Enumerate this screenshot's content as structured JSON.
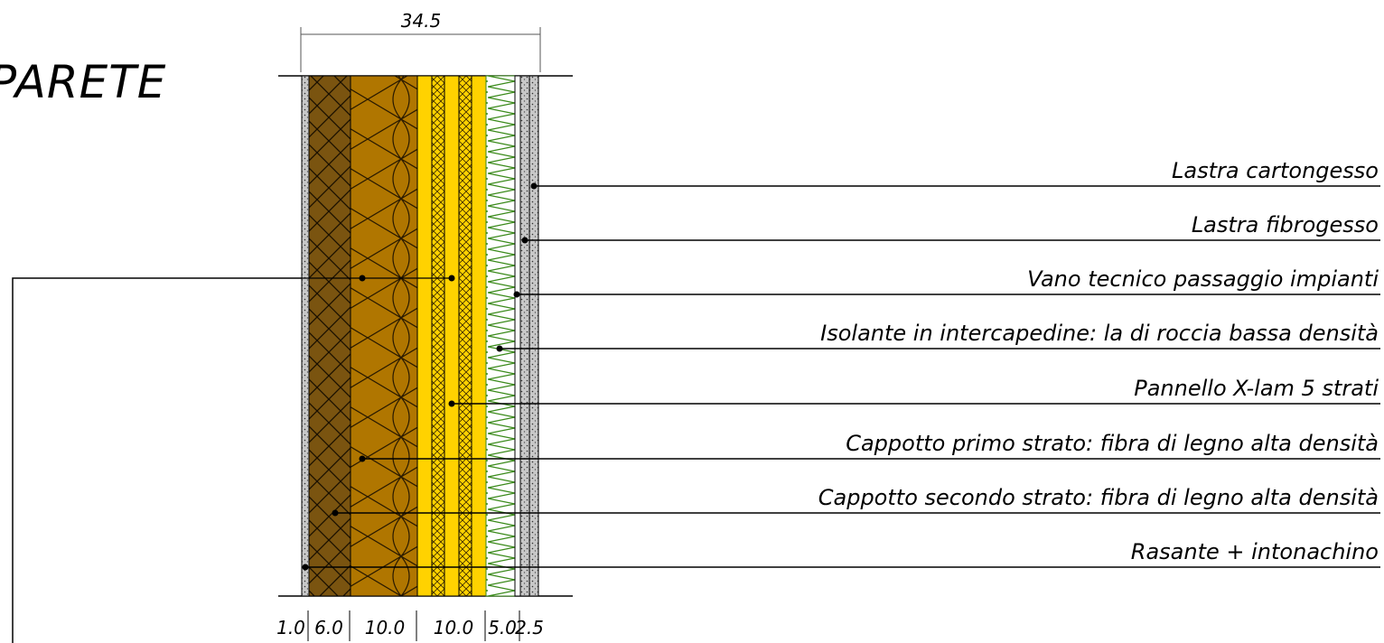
{
  "title": "PARETE",
  "overall_dimension": "34.5",
  "layer_thicknesses": [
    "1.0",
    "6.0",
    "10.0",
    "10.0",
    "5.0",
    "2.5"
  ],
  "labels": [
    "Lastra cartongesso",
    "Lastra fibrogesso",
    "Vano tecnico passaggio impianti",
    "Isolante in intercapedine: la di roccia bassa densità",
    "Pannello X-lam 5 strati",
    "Cappotto primo strato: fibra di legno alta densità",
    "Cappotto secondo strato: fibra di legno alta densità",
    "Rasante + intonachino"
  ],
  "colors": {
    "wood_fibre_dark": "#7a5410",
    "wood_fibre": "#b07600",
    "xlam_yellow": "#ffd200",
    "rockwool_green": "#3a8a1a"
  }
}
